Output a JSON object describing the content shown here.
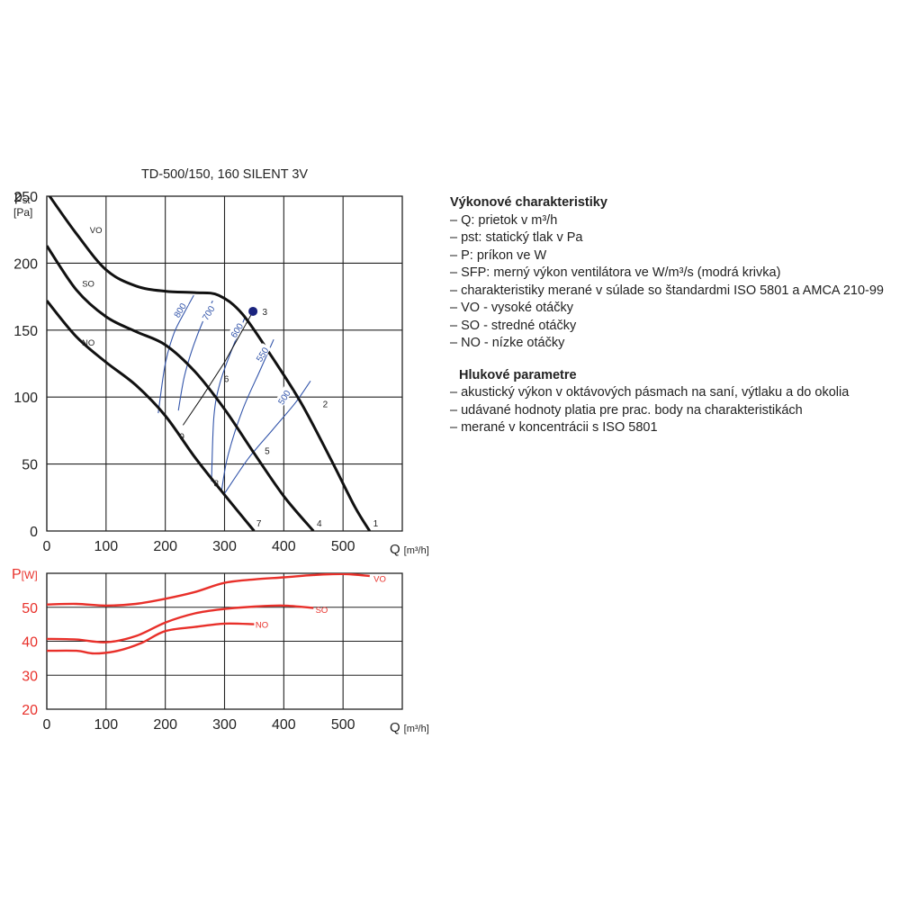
{
  "chart_data": [
    {
      "type": "line",
      "title": "TD-500/150, 160 SILENT 3V",
      "ylabel_main": "p",
      "ylabel_sub": "st",
      "ylabel_unit": "[Pa]",
      "xlabel": "Q",
      "xlabel_unit": "[m³/h]",
      "xlim": [
        0,
        600
      ],
      "ylim": [
        0,
        250
      ],
      "x_ticks": [
        0,
        100,
        200,
        300,
        400,
        500
      ],
      "y_ticks": [
        0,
        50,
        100,
        150,
        200,
        250
      ],
      "grid": true,
      "series": [
        {
          "name": "VO",
          "color": "#111111",
          "x": [
            0,
            50,
            100,
            150,
            200,
            250,
            290,
            330,
            380,
            430,
            480,
            520,
            545
          ],
          "y": [
            253,
            222,
            195,
            183,
            179,
            178,
            176,
            162,
            130,
            95,
            53,
            18,
            0
          ]
        },
        {
          "name": "SO",
          "color": "#111111",
          "x": [
            0,
            50,
            100,
            150,
            200,
            250,
            300,
            350,
            400,
            450
          ],
          "y": [
            213,
            180,
            160,
            149,
            139,
            119,
            91,
            58,
            26,
            0
          ]
        },
        {
          "name": "NO",
          "color": "#111111",
          "x": [
            0,
            50,
            100,
            150,
            200,
            250,
            300,
            350
          ],
          "y": [
            172,
            145,
            126,
            109,
            86,
            55,
            27,
            0
          ]
        }
      ],
      "series_labels": [
        {
          "text": "VO",
          "x": 83,
          "y": 225
        },
        {
          "text": "SO",
          "x": 70,
          "y": 185
        },
        {
          "text": "NO",
          "x": 70,
          "y": 141
        }
      ],
      "sfp_curves": [
        {
          "label": "800",
          "color": "#3355aa",
          "x": [
            188,
            200,
            215,
            232,
            248
          ],
          "y": [
            88,
            125,
            148,
            163,
            176
          ],
          "label_x": 224,
          "label_y": 165
        },
        {
          "label": "700",
          "color": "#3355aa",
          "x": [
            222,
            232,
            245,
            262,
            280
          ],
          "y": [
            90,
            115,
            135,
            155,
            172
          ],
          "label_x": 272,
          "label_y": 163
        },
        {
          "label": "600",
          "color": "#3355aa",
          "x": [
            278,
            282,
            292,
            312,
            335
          ],
          "y": [
            37,
            85,
            110,
            135,
            160
          ],
          "label_x": 320,
          "label_y": 150
        },
        {
          "label": "550",
          "color": "#3355aa",
          "x": [
            295,
            305,
            330,
            360,
            383
          ],
          "y": [
            30,
            55,
            90,
            120,
            143
          ],
          "label_x": 363,
          "label_y": 132
        },
        {
          "label": "500",
          "color": "#3355aa",
          "x": [
            300,
            340,
            380,
            420,
            445
          ],
          "y": [
            28,
            54,
            75,
            96,
            112
          ],
          "label_x": 400,
          "label_y": 100
        }
      ],
      "system_line": {
        "color": "#111111",
        "x": [
          230,
          262,
          300,
          348
        ],
        "y": [
          79,
          100,
          126,
          164
        ]
      },
      "operating_point": {
        "x": 348,
        "y": 164,
        "color": "#1a237e"
      },
      "points": [
        {
          "label": "1",
          "x": 555,
          "y": 6
        },
        {
          "label": "2",
          "x": 470,
          "y": 95
        },
        {
          "label": "3",
          "x": 368,
          "y": 164
        },
        {
          "label": "4",
          "x": 460,
          "y": 6
        },
        {
          "label": "5",
          "x": 372,
          "y": 60
        },
        {
          "label": "6",
          "x": 303,
          "y": 114
        },
        {
          "label": "7",
          "x": 358,
          "y": 6
        },
        {
          "label": "8",
          "x": 286,
          "y": 36
        },
        {
          "label": "9",
          "x": 228,
          "y": 71
        }
      ]
    },
    {
      "type": "line",
      "ylabel_main": "P",
      "ylabel_unit": "[W]",
      "xlabel": "Q",
      "xlabel_unit": "[m³/h]",
      "xlim": [
        0,
        600
      ],
      "ylim": [
        20,
        60
      ],
      "x_ticks": [
        0,
        100,
        200,
        300,
        400,
        500
      ],
      "y_ticks": [
        20,
        30,
        40,
        50
      ],
      "grid": true,
      "series": [
        {
          "name": "VO",
          "color": "#e8302a",
          "x": [
            0,
            50,
            100,
            150,
            200,
            250,
            300,
            350,
            400,
            450,
            500,
            545
          ],
          "y": [
            50.8,
            51,
            50.5,
            51,
            52.5,
            54.5,
            57.2,
            58.2,
            58.8,
            59.5,
            59.8,
            59.2
          ]
        },
        {
          "name": "SO",
          "color": "#e8302a",
          "x": [
            0,
            50,
            100,
            150,
            200,
            250,
            300,
            350,
            400,
            450
          ],
          "y": [
            40.7,
            40.5,
            39.7,
            41.5,
            45.5,
            48.2,
            49.5,
            50.2,
            50.5,
            49.8
          ]
        },
        {
          "name": "NO",
          "color": "#e8302a",
          "x": [
            0,
            50,
            80,
            120,
            160,
            200,
            250,
            300,
            350
          ],
          "y": [
            37.2,
            37.2,
            36.4,
            37.2,
            39.5,
            43,
            44.2,
            45.2,
            45
          ]
        }
      ],
      "series_labels": [
        {
          "text": "VO",
          "x": 562,
          "y": 58.6
        },
        {
          "text": "SO",
          "x": 464,
          "y": 49.4
        },
        {
          "text": "NO",
          "x": 363,
          "y": 45
        }
      ]
    }
  ],
  "legend": {
    "performance_title": "Výkonové charakteristiky",
    "performance_items": [
      "Q: prietok v m³/h",
      "pst: statický tlak v Pa",
      "P: príkon ve W",
      "SFP: merný výkon ventilátora ve W/m³/s (modrá krivka)",
      "charakteristiky merané v súlade so štandardmi ISO 5801 a AMCA 210-99",
      "VO - vysoké otáčky",
      "SO - stredné otáčky",
      "NO - nízke otáčky"
    ],
    "noise_title": "Hlukové parametre",
    "noise_items": [
      "akustický výkon v oktávových pásmach na saní, výtlaku a do okolia",
      "udávané hodnoty platia pre prac. body na charakteristikách",
      "merané v koncentrácii s ISO 5801"
    ]
  }
}
